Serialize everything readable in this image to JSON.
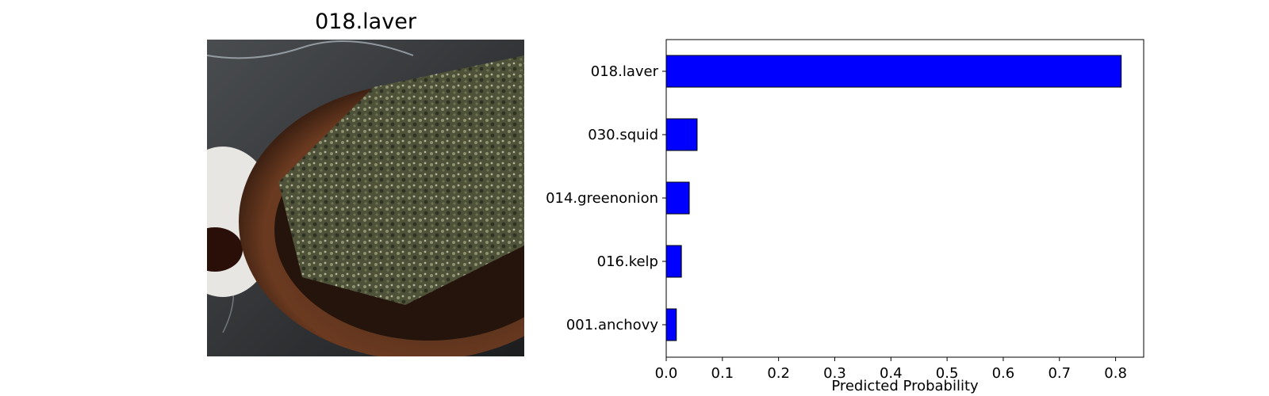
{
  "image_panel": {
    "title": "018.laver",
    "photo_icon": "laver-in-wooden-bowl-photo"
  },
  "chart_data": {
    "type": "bar",
    "orientation": "horizontal",
    "categories": [
      "018.laver",
      "030.squid",
      "014.greenonion",
      "016.kelp",
      "001.anchovy"
    ],
    "values": [
      0.81,
      0.055,
      0.041,
      0.027,
      0.018
    ],
    "xlabel": "Predicted Probability",
    "ylabel": "",
    "xlim": [
      0,
      0.85
    ],
    "xticks": [
      "0.0",
      "0.1",
      "0.2",
      "0.3",
      "0.4",
      "0.5",
      "0.6",
      "0.7",
      "0.8"
    ],
    "grid": false,
    "bar_color": "#0000ff",
    "bar_edge_color": "#000000"
  }
}
